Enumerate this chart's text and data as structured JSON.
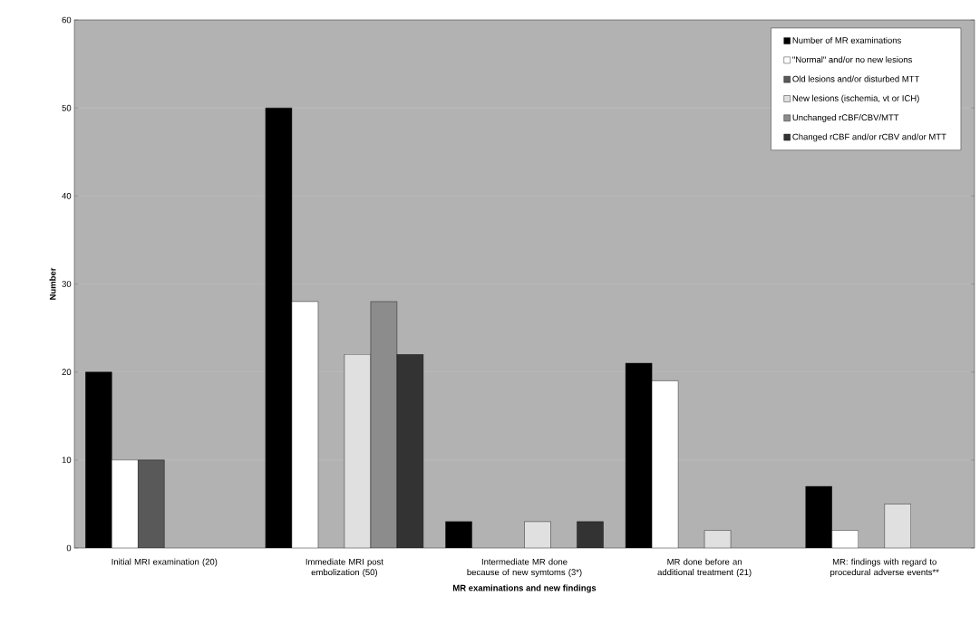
{
  "chart_data": {
    "type": "bar",
    "xlabel": "MR examinations and new findings",
    "ylabel": "Number",
    "categories": [
      "Initial MRI examination (20)",
      "Immediate MRI  post embolization (50)",
      "Intermediate MR done because of new symtoms (3*)",
      "MR done before an additional treatment (21)",
      "MR: findings with regard to procedural adverse events**"
    ],
    "series": [
      {
        "name": "Number of MR examinations",
        "color": "#000000",
        "values": [
          20,
          50,
          3,
          21,
          7
        ]
      },
      {
        "name": "\"Normal\" and/or no new lesions",
        "color": "#ffffff",
        "values": [
          10,
          28,
          null,
          19,
          2
        ]
      },
      {
        "name": "Old lesions and/or disturbed MTT",
        "color": "#595959",
        "values": [
          10,
          null,
          null,
          null,
          null
        ]
      },
      {
        "name": "New lesions (ischemia, vt or ICH)",
        "color": "#e0e0e0",
        "values": [
          null,
          22,
          3,
          2,
          5
        ]
      },
      {
        "name": "Unchanged rCBF/CBV/MTT",
        "color": "#8c8c8c",
        "values": [
          null,
          28,
          null,
          null,
          null
        ]
      },
      {
        "name": "Changed rCBF and/or rCBV and/or MTT",
        "color": "#333333",
        "values": [
          null,
          22,
          3,
          null,
          null
        ]
      }
    ],
    "ylim": [
      0,
      60
    ],
    "yticks": [
      0,
      10,
      20,
      30,
      40,
      50,
      60
    ],
    "grid": "y",
    "legend": "top right"
  }
}
